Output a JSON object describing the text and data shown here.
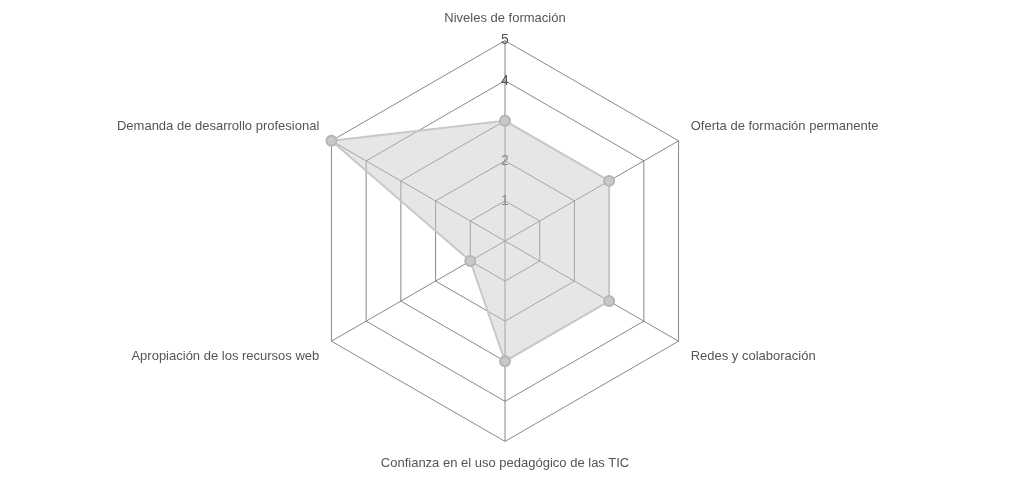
{
  "chart_data": {
    "type": "radar",
    "categories": [
      "Niveles de formación",
      "Oferta de formación permanente",
      "Redes y colaboración",
      "Confianza en el uso pedagógico de las TIC",
      "Apropiación de los recursos web",
      "Demanda de desarrollo profesional"
    ],
    "series": [
      {
        "color": "#c8c8c8",
        "values": [
          3,
          3,
          3,
          3,
          1,
          5
        ]
      }
    ],
    "ylim": [
      0,
      5
    ],
    "yticks": [
      1,
      2,
      3,
      4,
      5
    ],
    "grid": true,
    "legend": false,
    "marker": "circle"
  }
}
